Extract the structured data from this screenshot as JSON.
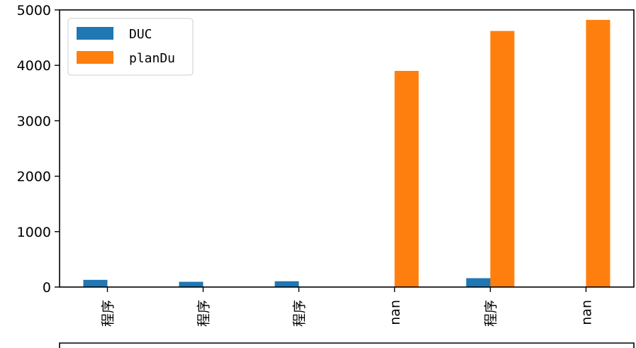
{
  "chart_data": {
    "type": "bar",
    "categories": [
      "…程序",
      "…程序",
      "…程序",
      "…1 nan",
      "…程序",
      "…3 nan"
    ],
    "series": [
      {
        "name": "DUC",
        "color": "#1f77b4",
        "values": [
          130,
          95,
          105,
          0,
          160,
          0
        ]
      },
      {
        "name": "planDu",
        "color": "#ff7f0e",
        "values": [
          0,
          0,
          0,
          3900,
          4620,
          4820
        ]
      }
    ],
    "ylim": [
      0,
      5000
    ],
    "yticks": [
      0,
      1000,
      2000,
      3000,
      4000,
      5000
    ],
    "ytick_labels": [
      "0",
      "1000",
      "2000",
      "3000",
      "4000",
      "5000"
    ],
    "xtick_labels": [
      "程序",
      "程序",
      "程序",
      "nan",
      "程序",
      "nan"
    ],
    "legend_position": "top-left",
    "grid": false
  }
}
